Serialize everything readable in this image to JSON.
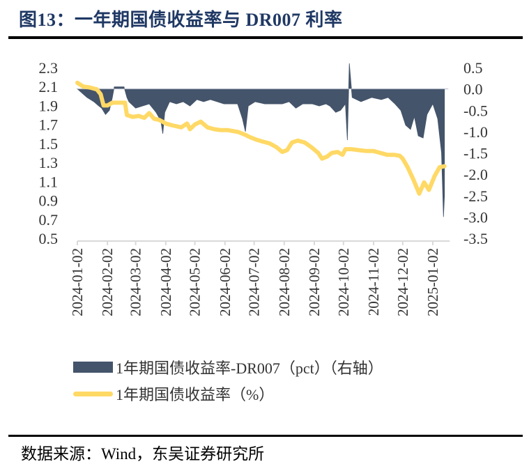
{
  "header": {
    "title": "图13：一年期国债收益率与 DR007 利率"
  },
  "footer": {
    "source": "数据来源：Wind，东吴证券研究所"
  },
  "colors": {
    "area": "#44546a",
    "line": "#ffd966",
    "title": "#1f3864",
    "axis": "#d9d9d9"
  },
  "chart_data": {
    "type": "line",
    "title": "图13：一年期国债收益率与 DR007 利率",
    "x_ticks": [
      "2024-01-02",
      "2024-02-02",
      "2024-03-02",
      "2024-04-02",
      "2024-05-02",
      "2024-06-02",
      "2024-07-02",
      "2024-08-02",
      "2024-09-02",
      "2024-10-02",
      "2024-11-02",
      "2024-12-02",
      "2025-01-02"
    ],
    "x_range": [
      "2024-01-02",
      "2025-01-18"
    ],
    "left_axis": {
      "ticks": [
        "2.3",
        "2.1",
        "1.9",
        "1.7",
        "1.5",
        "1.3",
        "1.1",
        "0.9",
        "0.7",
        "0.5"
      ],
      "ylim": [
        0.5,
        2.3
      ]
    },
    "right_axis": {
      "ticks": [
        "0.5",
        "0.0",
        "-0.5",
        "-1.0",
        "-1.5",
        "-2.0",
        "-2.5",
        "-3.0",
        "-3.5"
      ],
      "ylim": [
        -3.5,
        0.5
      ]
    },
    "legend": {
      "placement": "bottom"
    },
    "series": [
      {
        "name": "1年期国债收益率-DR007（pct）（右轴）",
        "kind": "area",
        "axis": "right",
        "points": [
          [
            "2024-01-02",
            0.0
          ],
          [
            "2024-01-07",
            -0.1
          ],
          [
            "2024-01-12",
            -0.2
          ],
          [
            "2024-01-19",
            -0.3
          ],
          [
            "2024-01-24",
            -0.4
          ],
          [
            "2024-01-27",
            -0.45
          ],
          [
            "2024-01-31",
            -0.6
          ],
          [
            "2024-02-04",
            -0.5
          ],
          [
            "2024-02-07",
            -0.2
          ],
          [
            "2024-02-09",
            0.05
          ],
          [
            "2024-02-13",
            0.05
          ],
          [
            "2024-02-19",
            0.05
          ],
          [
            "2024-02-22",
            -0.2
          ],
          [
            "2024-02-24",
            -0.3
          ],
          [
            "2024-03-02",
            -0.45
          ],
          [
            "2024-03-09",
            -0.4
          ],
          [
            "2024-03-16",
            -0.35
          ],
          [
            "2024-03-23",
            -0.55
          ],
          [
            "2024-03-28",
            -0.75
          ],
          [
            "2024-03-30",
            -1.05
          ],
          [
            "2024-04-01",
            -0.55
          ],
          [
            "2024-04-06",
            -0.3
          ],
          [
            "2024-04-13",
            -0.35
          ],
          [
            "2024-04-20",
            -0.3
          ],
          [
            "2024-04-27",
            -0.4
          ],
          [
            "2024-05-04",
            -0.25
          ],
          [
            "2024-05-11",
            -0.3
          ],
          [
            "2024-05-18",
            -0.25
          ],
          [
            "2024-05-25",
            -0.3
          ],
          [
            "2024-06-01",
            -0.35
          ],
          [
            "2024-06-15",
            -0.35
          ],
          [
            "2024-06-20",
            -0.7
          ],
          [
            "2024-06-23",
            -1.0
          ],
          [
            "2024-06-26",
            -0.4
          ],
          [
            "2024-07-03",
            -0.3
          ],
          [
            "2024-07-13",
            -0.35
          ],
          [
            "2024-07-24",
            -0.35
          ],
          [
            "2024-07-31",
            -0.35
          ],
          [
            "2024-08-07",
            -0.3
          ],
          [
            "2024-08-14",
            -0.45
          ],
          [
            "2024-08-21",
            -0.35
          ],
          [
            "2024-08-31",
            -0.35
          ],
          [
            "2024-09-07",
            -0.4
          ],
          [
            "2024-09-14",
            -0.35
          ],
          [
            "2024-09-18",
            -0.4
          ],
          [
            "2024-09-24",
            -0.55
          ],
          [
            "2024-09-29",
            -0.5
          ],
          [
            "2024-10-04",
            -0.35
          ],
          [
            "2024-10-06",
            -1.2
          ],
          [
            "2024-10-08",
            0.6
          ],
          [
            "2024-10-11",
            -0.2
          ],
          [
            "2024-10-20",
            -0.3
          ],
          [
            "2024-10-31",
            -0.2
          ],
          [
            "2024-11-10",
            -0.25
          ],
          [
            "2024-11-17",
            -0.2
          ],
          [
            "2024-11-24",
            -0.35
          ],
          [
            "2024-11-30",
            -0.5
          ],
          [
            "2024-12-05",
            -0.85
          ],
          [
            "2024-12-10",
            -0.95
          ],
          [
            "2024-12-14",
            -0.65
          ],
          [
            "2024-12-18",
            -1.1
          ],
          [
            "2024-12-23",
            -1.15
          ],
          [
            "2024-12-27",
            -0.6
          ],
          [
            "2025-01-02",
            -0.35
          ],
          [
            "2025-01-07",
            -0.7
          ],
          [
            "2025-01-11",
            -1.5
          ],
          [
            "2025-01-13",
            -3.0
          ],
          [
            "2025-01-14",
            -2.5
          ]
        ]
      },
      {
        "name": "1年期国债收益率（%）",
        "kind": "line",
        "axis": "left",
        "points": [
          [
            "2024-01-02",
            2.14
          ],
          [
            "2024-01-08",
            2.1
          ],
          [
            "2024-01-15",
            2.09
          ],
          [
            "2024-01-22",
            2.07
          ],
          [
            "2024-01-26",
            2.02
          ],
          [
            "2024-01-29",
            1.9
          ],
          [
            "2024-02-02",
            1.9
          ],
          [
            "2024-02-07",
            1.93
          ],
          [
            "2024-02-14",
            1.93
          ],
          [
            "2024-02-20",
            1.93
          ],
          [
            "2024-02-22",
            1.8
          ],
          [
            "2024-02-28",
            1.78
          ],
          [
            "2024-03-05",
            1.79
          ],
          [
            "2024-03-11",
            1.77
          ],
          [
            "2024-03-16",
            1.82
          ],
          [
            "2024-03-21",
            1.76
          ],
          [
            "2024-03-26",
            1.75
          ],
          [
            "2024-04-02",
            1.71
          ],
          [
            "2024-04-09",
            1.69
          ],
          [
            "2024-04-18",
            1.67
          ],
          [
            "2024-04-24",
            1.71
          ],
          [
            "2024-04-27",
            1.65
          ],
          [
            "2024-05-02",
            1.7
          ],
          [
            "2024-05-08",
            1.73
          ],
          [
            "2024-05-15",
            1.67
          ],
          [
            "2024-05-22",
            1.65
          ],
          [
            "2024-05-29",
            1.64
          ],
          [
            "2024-06-05",
            1.64
          ],
          [
            "2024-06-16",
            1.62
          ],
          [
            "2024-06-23",
            1.59
          ],
          [
            "2024-06-27",
            1.57
          ],
          [
            "2024-07-04",
            1.54
          ],
          [
            "2024-07-11",
            1.52
          ],
          [
            "2024-07-18",
            1.5
          ],
          [
            "2024-07-25",
            1.46
          ],
          [
            "2024-07-31",
            1.41
          ],
          [
            "2024-08-05",
            1.43
          ],
          [
            "2024-08-10",
            1.51
          ],
          [
            "2024-08-16",
            1.53
          ],
          [
            "2024-08-23",
            1.51
          ],
          [
            "2024-08-30",
            1.46
          ],
          [
            "2024-09-06",
            1.4
          ],
          [
            "2024-09-10",
            1.34
          ],
          [
            "2024-09-15",
            1.36
          ],
          [
            "2024-09-20",
            1.4
          ],
          [
            "2024-09-26",
            1.41
          ],
          [
            "2024-10-01",
            1.38
          ],
          [
            "2024-10-04",
            1.44
          ],
          [
            "2024-10-10",
            1.44
          ],
          [
            "2024-10-17",
            1.43
          ],
          [
            "2024-10-26",
            1.42
          ],
          [
            "2024-11-02",
            1.42
          ],
          [
            "2024-11-09",
            1.4
          ],
          [
            "2024-11-16",
            1.38
          ],
          [
            "2024-11-23",
            1.38
          ],
          [
            "2024-11-29",
            1.37
          ],
          [
            "2024-12-02",
            1.34
          ],
          [
            "2024-12-07",
            1.25
          ],
          [
            "2024-12-13",
            1.12
          ],
          [
            "2024-12-19",
            0.97
          ],
          [
            "2024-12-24",
            1.09
          ],
          [
            "2024-12-29",
            1.01
          ],
          [
            "2025-01-04",
            1.16
          ],
          [
            "2025-01-09",
            1.25
          ],
          [
            "2025-01-14",
            1.26
          ]
        ]
      }
    ]
  }
}
